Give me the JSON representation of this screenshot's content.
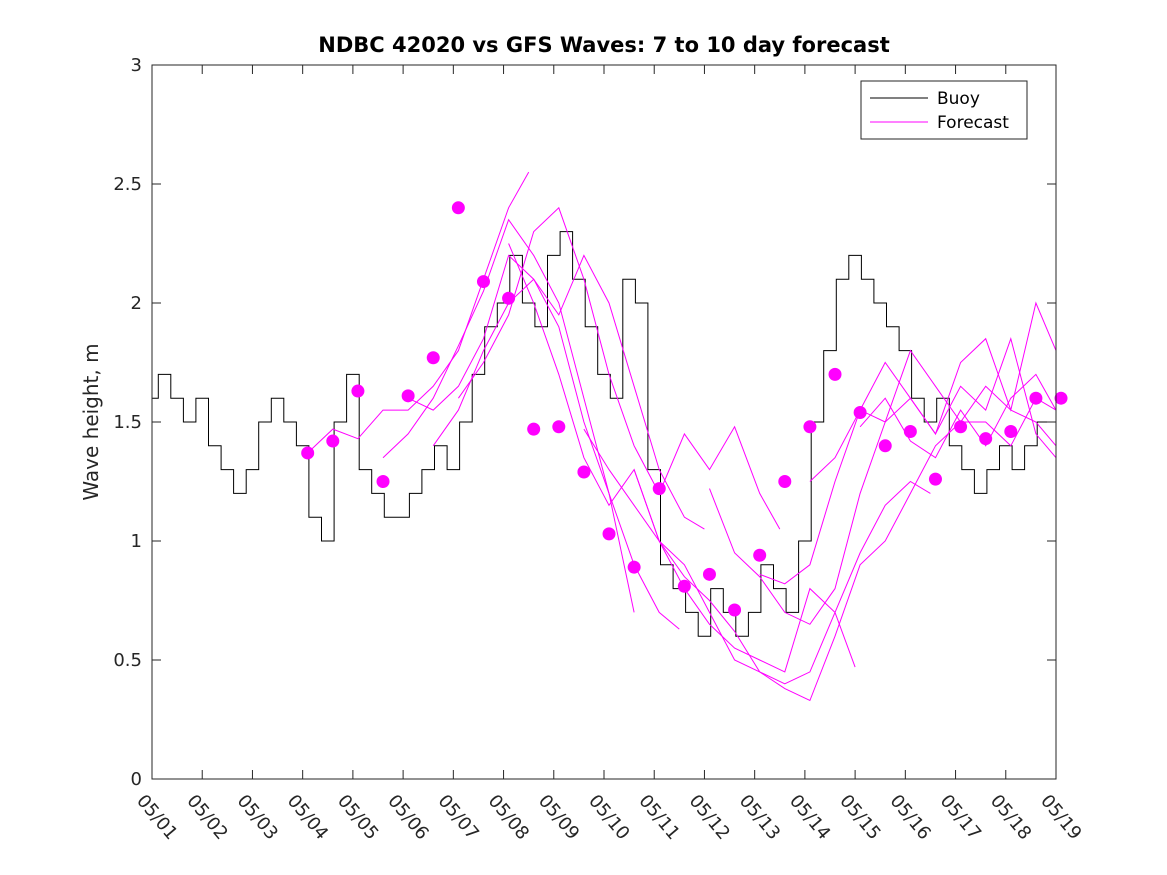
{
  "chart_data": {
    "type": "line",
    "title": "NDBC 42020 vs GFS Waves: 7 to 10 day forecast",
    "xlabel": "",
    "ylabel": "Wave height, m",
    "xlim": [
      "05/01",
      "05/19"
    ],
    "ylim": [
      0,
      3
    ],
    "x_ticks": [
      "05/01",
      "05/02",
      "05/03",
      "05/04",
      "05/05",
      "05/06",
      "05/07",
      "05/08",
      "05/09",
      "05/10",
      "05/11",
      "05/12",
      "05/13",
      "05/14",
      "05/15",
      "05/16",
      "05/17",
      "05/18",
      "05/19"
    ],
    "y_ticks": [
      "0",
      "0.5",
      "1",
      "1.5",
      "2",
      "2.5",
      "3"
    ],
    "legend": {
      "position": "top-right",
      "entries": [
        {
          "label": "Buoy",
          "color": "#000000"
        },
        {
          "label": "Forecast",
          "color": "#ff00ff"
        }
      ]
    },
    "buoy": {
      "name": "Buoy",
      "color": "#000000",
      "day": [
        0,
        0.25,
        0.5,
        0.75,
        1,
        1.25,
        1.5,
        1.75,
        2,
        2.25,
        2.5,
        2.75,
        3,
        3.25,
        3.5,
        3.75,
        4,
        4.25,
        4.5,
        4.75,
        5,
        5.25,
        5.5,
        5.75,
        6,
        6.25,
        6.5,
        6.75,
        7,
        7.25,
        7.5,
        7.75,
        8,
        8.25,
        8.5,
        8.75,
        9,
        9.25,
        9.5,
        9.75,
        10,
        10.25,
        10.5,
        10.75,
        11,
        11.25,
        11.5,
        11.75,
        12,
        12.25,
        12.5,
        12.75,
        13,
        13.25,
        13.5,
        13.75,
        14,
        14.25,
        14.5,
        14.75,
        15,
        15.25,
        15.5,
        15.75,
        16,
        16.25,
        16.5,
        16.75,
        17,
        17.25,
        17.5,
        17.75,
        18
      ],
      "values": [
        1.6,
        1.7,
        1.6,
        1.5,
        1.6,
        1.4,
        1.3,
        1.2,
        1.3,
        1.5,
        1.6,
        1.5,
        1.4,
        1.1,
        1.0,
        1.5,
        1.7,
        1.3,
        1.2,
        1.1,
        1.1,
        1.2,
        1.3,
        1.4,
        1.3,
        1.5,
        1.7,
        1.9,
        2.0,
        2.2,
        2.0,
        1.9,
        2.2,
        2.3,
        2.1,
        1.9,
        1.7,
        1.6,
        2.1,
        2.0,
        1.3,
        0.9,
        0.8,
        0.7,
        0.6,
        0.8,
        0.7,
        0.6,
        0.7,
        0.9,
        0.8,
        0.7,
        1.0,
        1.5,
        1.8,
        2.1,
        2.2,
        2.1,
        2.0,
        1.9,
        1.8,
        1.6,
        1.5,
        1.6,
        1.4,
        1.3,
        1.2,
        1.3,
        1.4,
        1.3,
        1.4,
        1.5,
        1.5
      ]
    },
    "forecast_lines": [
      {
        "x": [
          3.1,
          3.6,
          4.1,
          4.6,
          5.1,
          5.6,
          6.1,
          6.6,
          7.1,
          7.5
        ],
        "y": [
          1.37,
          1.47,
          1.43,
          1.55,
          1.55,
          1.65,
          1.8,
          2.1,
          2.4,
          2.55
        ]
      },
      {
        "x": [
          4.6,
          5.1,
          5.6,
          6.1,
          6.6,
          7.1,
          7.6,
          8.1,
          8.6,
          9.1,
          9.6
        ],
        "y": [
          1.35,
          1.45,
          1.6,
          1.82,
          2.05,
          2.35,
          2.2,
          2.0,
          1.6,
          1.2,
          0.7
        ]
      },
      {
        "x": [
          5.1,
          5.6,
          6.1,
          6.6,
          7.1,
          7.6,
          8.1,
          8.6,
          9.1,
          9.6,
          10.1,
          10.5
        ],
        "y": [
          1.6,
          1.55,
          1.65,
          1.85,
          2.2,
          2.1,
          1.9,
          1.5,
          1.2,
          0.9,
          0.7,
          0.63
        ]
      },
      {
        "x": [
          5.6,
          6.1,
          6.6,
          7.1,
          7.6,
          8.1,
          8.6,
          9.1,
          9.6,
          10.1,
          10.6,
          11.0
        ],
        "y": [
          1.4,
          1.55,
          1.8,
          2.0,
          2.1,
          1.95,
          2.2,
          2.0,
          1.65,
          1.3,
          1.1,
          1.05
        ]
      },
      {
        "x": [
          6.1,
          6.6,
          7.1,
          7.6,
          8.1,
          8.6,
          9.1,
          9.6,
          10.1,
          10.6,
          11.1,
          11.6,
          12.1,
          12.5
        ],
        "y": [
          1.6,
          1.75,
          1.95,
          2.3,
          2.4,
          2.1,
          1.7,
          1.4,
          1.2,
          1.45,
          1.3,
          1.48,
          1.2,
          1.05
        ]
      },
      {
        "x": [
          7.1,
          7.6,
          8.1,
          8.6,
          9.1,
          9.6,
          10.1,
          10.6,
          11.1,
          11.6,
          12.1,
          12.6,
          13.1,
          13.6,
          14.0
        ],
        "y": [
          2.25,
          2.0,
          1.7,
          1.35,
          1.15,
          1.3,
          1.0,
          0.8,
          0.65,
          0.55,
          0.5,
          0.45,
          0.8,
          0.7,
          0.47
        ]
      },
      {
        "x": [
          8.6,
          9.1,
          9.6,
          10.1,
          10.6,
          11.1,
          11.6,
          12.1,
          12.6,
          13.1,
          13.6,
          14.1,
          14.6,
          15.1,
          15.5
        ],
        "y": [
          1.47,
          1.3,
          1.15,
          1.0,
          0.9,
          0.7,
          0.5,
          0.45,
          0.4,
          0.45,
          0.7,
          0.95,
          1.15,
          1.25,
          1.2
        ]
      },
      {
        "x": [
          9.6,
          10.1,
          10.6,
          11.1,
          11.6,
          12.1,
          12.6,
          13.1,
          13.6,
          14.1,
          14.6,
          15.1,
          15.6,
          16.1,
          16.6,
          17.1,
          17.6,
          18.0
        ],
        "y": [
          1.3,
          1.0,
          0.85,
          0.75,
          0.62,
          0.45,
          0.38,
          0.33,
          0.6,
          0.9,
          1.0,
          1.2,
          1.4,
          1.5,
          1.5,
          1.4,
          1.6,
          1.55
        ]
      },
      {
        "x": [
          11.1,
          11.6,
          12.1,
          12.6,
          13.1,
          13.6,
          14.1,
          14.6,
          15.1,
          15.6,
          16.1,
          16.6,
          17.1,
          17.6,
          18.0
        ],
        "y": [
          1.22,
          0.95,
          0.85,
          0.7,
          0.65,
          0.8,
          1.2,
          1.5,
          1.8,
          1.65,
          1.5,
          1.65,
          1.55,
          1.5,
          1.4
        ]
      },
      {
        "x": [
          12.1,
          12.6,
          13.1,
          13.6,
          14.1,
          14.6,
          15.1,
          15.6,
          16.1,
          16.6,
          17.1,
          17.6,
          18.0
        ],
        "y": [
          0.86,
          0.82,
          0.9,
          1.25,
          1.55,
          1.75,
          1.6,
          1.45,
          1.75,
          1.85,
          1.55,
          2.0,
          1.8
        ]
      },
      {
        "x": [
          13.1,
          13.6,
          14.1,
          14.6,
          15.1,
          15.6,
          16.1,
          16.6,
          17.1,
          17.6,
          18.0
        ],
        "y": [
          1.25,
          1.35,
          1.55,
          1.5,
          1.6,
          1.45,
          1.65,
          1.55,
          1.85,
          1.45,
          1.35
        ]
      },
      {
        "x": [
          14.1,
          14.6,
          15.1,
          15.6,
          16.1,
          16.6,
          17.1,
          17.6,
          18.0
        ],
        "y": [
          1.48,
          1.6,
          1.42,
          1.35,
          1.55,
          1.4,
          1.6,
          1.7,
          1.55
        ]
      }
    ],
    "forecast_points": {
      "name": "Forecast",
      "color": "#ff00ff",
      "day": [
        3.1,
        3.6,
        4.1,
        4.6,
        5.1,
        5.6,
        6.1,
        6.6,
        7.1,
        7.6,
        8.1,
        8.6,
        9.1,
        9.6,
        10.1,
        10.6,
        11.1,
        11.6,
        12.1,
        12.6,
        13.1,
        13.6,
        14.1,
        14.6,
        15.1,
        15.6,
        16.1,
        16.6,
        17.1,
        17.6,
        18.1
      ],
      "values": [
        1.37,
        1.42,
        1.63,
        1.25,
        1.61,
        1.77,
        2.4,
        2.09,
        2.02,
        1.47,
        1.48,
        1.29,
        1.03,
        0.89,
        1.22,
        0.81,
        0.86,
        0.71,
        0.94,
        1.25,
        1.48,
        1.7,
        1.54,
        1.4,
        1.46,
        1.26,
        1.48,
        1.43,
        1.46,
        1.6,
        1.6
      ]
    }
  }
}
